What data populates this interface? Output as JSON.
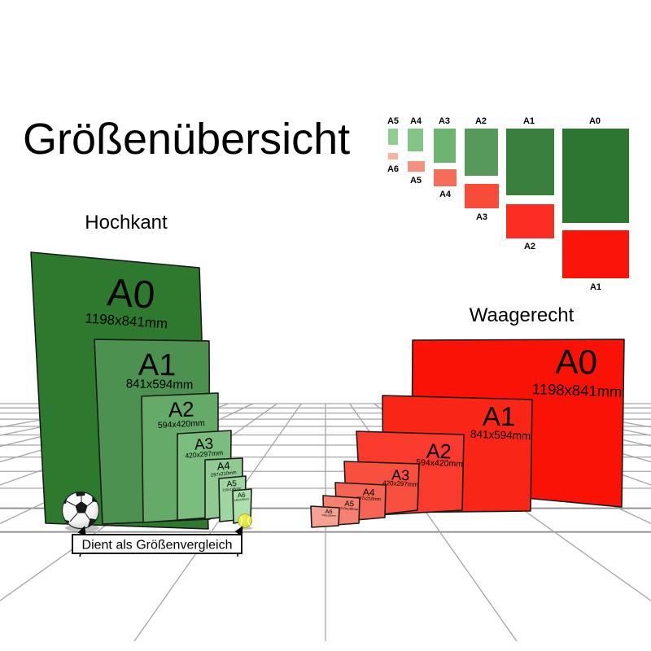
{
  "title": "Größenübersicht",
  "sections": {
    "portrait_label": "Hochkant",
    "landscape_label": "Waagerecht"
  },
  "legend": {
    "green": [
      {
        "label": "A5",
        "color": "#90cd92"
      },
      {
        "label": "A4",
        "color": "#83c586"
      },
      {
        "label": "A3",
        "color": "#6db470"
      },
      {
        "label": "A2",
        "color": "#57995b"
      },
      {
        "label": "A1",
        "color": "#3a7f3e"
      },
      {
        "label": "A0",
        "color": "#2d7631"
      }
    ],
    "red": [
      {
        "label": "A6",
        "color": "#f7b2a2"
      },
      {
        "label": "A5",
        "color": "#f59181"
      },
      {
        "label": "A4",
        "color": "#f66c59"
      },
      {
        "label": "A3",
        "color": "#f84c3b"
      },
      {
        "label": "A2",
        "color": "#f92d20"
      },
      {
        "label": "A1",
        "color": "#fb1409"
      }
    ]
  },
  "panels": {
    "green": [
      {
        "name": "A0",
        "dims": "1198x841mm",
        "color": "#2d7a2f"
      },
      {
        "name": "A1",
        "dims": "841x594mm",
        "color": "#4c9150"
      },
      {
        "name": "A2",
        "dims": "594x420mm",
        "color": "#65aa68"
      },
      {
        "name": "A3",
        "dims": "420x297mm",
        "color": "#7bbd7e"
      },
      {
        "name": "A4",
        "dims": "297x210mm",
        "color": "#90ca92"
      },
      {
        "name": "A5",
        "dims": "210x148mm",
        "color": "#9fd5a1"
      },
      {
        "name": "A6",
        "dims": "148x105mm",
        "color": "#addfaf"
      }
    ],
    "red": [
      {
        "name": "A0",
        "dims": "1198x841mm",
        "color": "#fa1206"
      },
      {
        "name": "A1",
        "dims": "841x594mm",
        "color": "#f92517"
      },
      {
        "name": "A2",
        "dims": "594x420mm",
        "color": "#f93a2c"
      },
      {
        "name": "A3",
        "dims": "420x297mm",
        "color": "#f8503f"
      },
      {
        "name": "A4",
        "dims": "297x210mm",
        "color": "#f56452"
      },
      {
        "name": "A5",
        "dims": "210x148mm",
        "color": "#f68170"
      },
      {
        "name": "A6",
        "dims": "148x105mm",
        "color": "#f7a193"
      }
    ]
  },
  "caption": "Dient als Größenvergleich",
  "icons": {
    "soccer_ball": "soccer-ball-icon",
    "tennis_ball": "tennis-ball-icon"
  },
  "grid_color": "#a6a6a6"
}
